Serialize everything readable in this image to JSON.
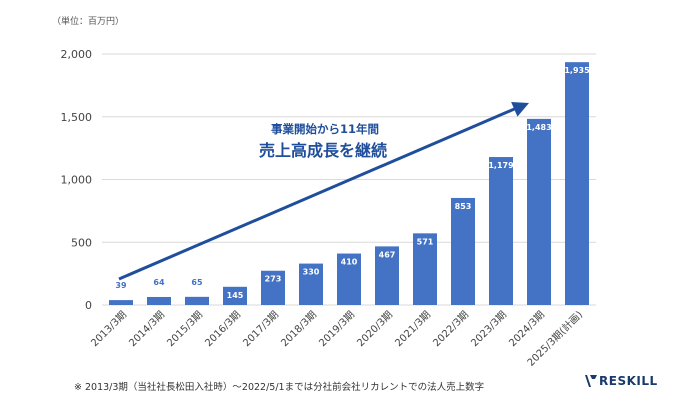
{
  "unit_label": "（単位：百万円）",
  "footnote": "※ 2013/3期（当社社長松田入社時）〜2022/5/1までは分社前会社リカレントでの法人売上数字",
  "logo": {
    "text": "RESKILL",
    "icon": "reskill-logo-icon",
    "color": "#1a3a6b"
  },
  "annotation": {
    "line1": "事業開始から11年間",
    "line2": "売上高成長を継続",
    "color": "#1f4e9c"
  },
  "colors": {
    "bar": "#4472c4",
    "arrow": "#1f4e9c",
    "grid": "#d9d9d9",
    "label_on_bar": "#ffffff",
    "label_small": "#4472c4"
  },
  "chart_data": {
    "type": "bar",
    "categories": [
      "2013/3期",
      "2014/3期",
      "2015/3期",
      "2016/3期",
      "2017/3期",
      "2018/3期",
      "2019/3期",
      "2020/3期",
      "2021/3期",
      "2022/3期",
      "2023/3期",
      "2024/3期",
      "2025/3期(計画)"
    ],
    "values": [
      39,
      64,
      65,
      145,
      273,
      330,
      410,
      467,
      571,
      853,
      1179,
      1483,
      1935
    ],
    "value_labels": [
      "39",
      "64",
      "65",
      "145",
      "273",
      "330",
      "410",
      "467",
      "571",
      "853",
      "1,179",
      "1,483",
      "1,935"
    ],
    "yticks": [
      0,
      500,
      1000,
      1500,
      2000
    ],
    "ytick_labels": [
      "0",
      "500",
      "1,000",
      "1,500",
      "2,000"
    ],
    "ylim": [
      0,
      2000
    ],
    "grid": true
  }
}
